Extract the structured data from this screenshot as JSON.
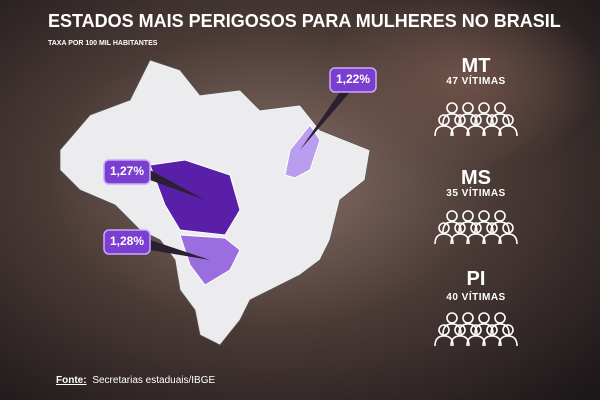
{
  "header": {
    "title": "ESTADOS MAIS PERIGOSOS PARA MULHERES NO BRASIL",
    "subtitle": "TAXA POR 100 MIL HABITANTES"
  },
  "states": [
    {
      "code": "MT",
      "victims": "47 VÍTIMAS",
      "rate": "1,27%"
    },
    {
      "code": "MS",
      "victims": "35 VÍTIMAS",
      "rate": "1,28%"
    },
    {
      "code": "PI",
      "victims": "40 VÍTIMAS",
      "rate": "1,22%"
    }
  ],
  "source": {
    "label": "Fonte:",
    "text": "Secretarias estaduais/IBGE"
  }
}
